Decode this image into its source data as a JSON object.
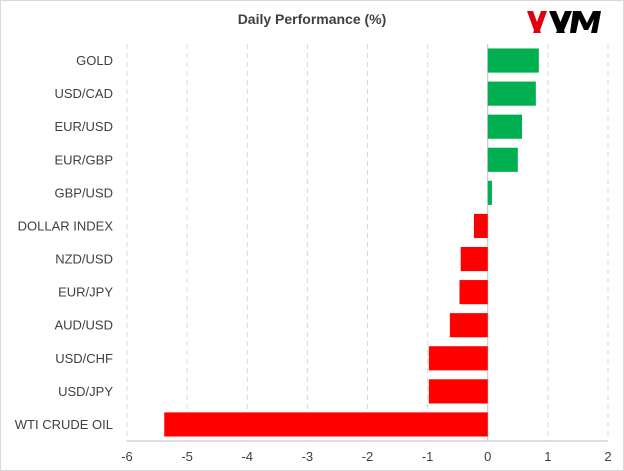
{
  "title": "Daily Performance (%)",
  "logo": {
    "text": "XM",
    "colors": {
      "red": "#e3000f",
      "black": "#000000"
    }
  },
  "colors": {
    "positive": "#00b050",
    "negative": "#ff0000",
    "grid": "#d9d9d9",
    "axis": "#bfbfbf",
    "text": "#404040"
  },
  "chart_data": {
    "type": "bar",
    "orientation": "horizontal",
    "title": "Daily Performance (%)",
    "categories": [
      "GOLD",
      "USD/CAD",
      "EUR/USD",
      "EUR/GBP",
      "GBP/USD",
      "DOLLAR INDEX",
      "NZD/USD",
      "EUR/JPY",
      "AUD/USD",
      "USD/CHF",
      "USD/JPY",
      "WTI CRUDE OIL"
    ],
    "values": [
      0.85,
      0.8,
      0.57,
      0.5,
      0.07,
      -0.23,
      -0.45,
      -0.47,
      -0.63,
      -0.98,
      -0.98,
      -5.38
    ],
    "xlim": [
      -6,
      2
    ],
    "xticks": [
      "-6",
      "-5",
      "-4",
      "-3",
      "-2",
      "-1",
      "0",
      "1",
      "2"
    ],
    "xtick_values": [
      -6,
      -5,
      -4,
      -3,
      -2,
      -1,
      0,
      1,
      2
    ],
    "grid": "vertical",
    "legend": "none"
  }
}
